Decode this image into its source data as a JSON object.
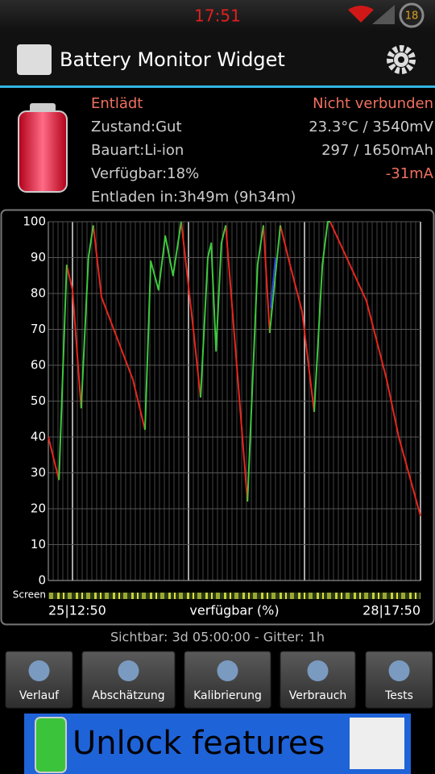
{
  "status_bar": {
    "time": "17:51",
    "battery_level": "18"
  },
  "app_bar": {
    "title": "Battery Monitor Widget"
  },
  "info": {
    "status": "Entlädt",
    "connection": "Nicht verbunden",
    "health": "Zustand:Gut",
    "temp_voltage": "23.3°C / 3540mV",
    "type": "Bauart:Li-ion",
    "capacity": "297 / 1650mAh",
    "available": "Verfügbar:18%",
    "current": "-31mA",
    "discharge_time": "Entladen in:3h49m (9h34m)"
  },
  "chart_data": {
    "type": "line",
    "x_label": "verfügbar (%)",
    "screen_label": "Screen",
    "xlim": [
      0,
      77
    ],
    "xticks": [
      {
        "value": 0,
        "label": "25|12:50"
      },
      {
        "value": 77,
        "label": "28|17:50"
      }
    ],
    "ylim": [
      0,
      100
    ],
    "yticks": [
      0,
      10,
      20,
      30,
      40,
      50,
      60,
      70,
      80,
      90,
      100
    ],
    "grid": true,
    "series": [
      {
        "color": "#e8271e",
        "x": [
          0,
          2.2,
          null,
          3.8,
          5,
          6.8,
          null,
          9.3,
          11,
          17.5,
          20,
          null,
          27.5,
          30,
          31.5,
          null,
          36.7,
          41.2,
          null,
          44.5,
          45.8,
          null,
          48,
          50,
          52.5,
          55,
          null,
          58.3,
          65.8,
          70,
          72.5,
          77
        ],
        "values": [
          40,
          28,
          null,
          88,
          81,
          48,
          null,
          99,
          79,
          56,
          42,
          null,
          100,
          70,
          51,
          null,
          99,
          22,
          null,
          99,
          69,
          null,
          99,
          88,
          75,
          47,
          null,
          100,
          78,
          56,
          40,
          18
        ]
      },
      {
        "color": "#3ec93e",
        "x": [
          2.2,
          3.8,
          null,
          6.8,
          8.3,
          9.3,
          null,
          20,
          21.2,
          22.8,
          24.2,
          25.8,
          27.5,
          null,
          31.5,
          33,
          33.7,
          34.7,
          35.8,
          36.7,
          null,
          41.2,
          43.3,
          44.5,
          null,
          45.8,
          48,
          null,
          55,
          56.7,
          57.8,
          58.3
        ],
        "values": [
          28,
          88,
          null,
          48,
          90,
          99,
          null,
          42,
          89,
          81,
          96,
          85,
          100,
          null,
          51,
          90,
          94,
          64,
          94,
          99,
          null,
          22,
          88,
          99,
          null,
          69,
          99,
          null,
          47,
          88,
          100,
          100
        ]
      },
      {
        "color": "#3040e0",
        "x": [
          46,
          47
        ],
        "values": [
          76,
          90
        ]
      }
    ]
  },
  "footer": "Sichtbar: 3d 05:00:00 - Gitter: 1h",
  "buttons": [
    "Verlauf",
    "Abschätzung",
    "Kalibrierung",
    "Verbrauch",
    "Tests"
  ],
  "banner": {
    "text": "Unlock features"
  }
}
